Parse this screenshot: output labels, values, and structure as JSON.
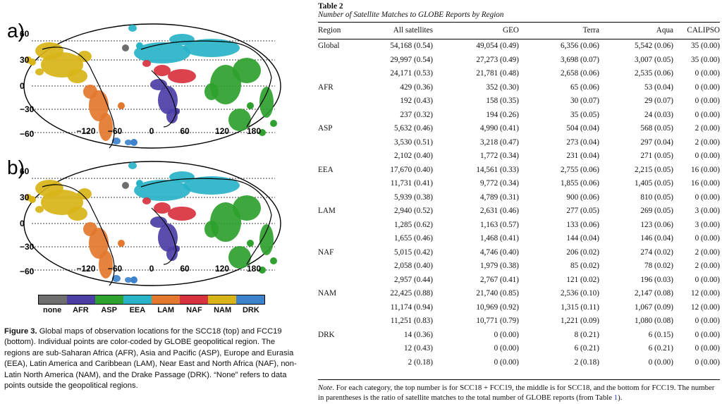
{
  "figure": {
    "panel_a": "a)",
    "panel_b": "b)",
    "lat_labels": [
      "60",
      "30",
      "0",
      "−30",
      "−60"
    ],
    "lon_labels": [
      "−120",
      "−60",
      "0",
      "60",
      "120",
      "180"
    ],
    "colorbar": [
      {
        "label": "none",
        "color": "#6e6e6e"
      },
      {
        "label": "AFR",
        "color": "#4b3fa6"
      },
      {
        "label": "ASP",
        "color": "#2ea12e"
      },
      {
        "label": "EEA",
        "color": "#29b3c9"
      },
      {
        "label": "LAM",
        "color": "#e3782e"
      },
      {
        "label": "NAF",
        "color": "#d8323f"
      },
      {
        "label": "NAM",
        "color": "#d8b418"
      },
      {
        "label": "DRK",
        "color": "#3d82cc"
      }
    ],
    "caption_label": "Figure 3.",
    "caption_text": " Global maps of observation locations for the SCC18 (top) and FCC19 (bottom). Individual points are color-coded by GLOBE geopolitical region. The regions are sub-Saharan Africa (AFR), Asia and Pacific (ASP), Europe and Eurasia (EEA), Latin America and Caribbean (LAM), Near East and North Africa (NAF), non-Latin North America (NAM), and the Drake Passage (DRK). “None” refers to data points outside the geopolitical regions."
  },
  "table": {
    "title": "Table 2",
    "subtitle": "Number of Satellite Matches to GLOBE Reports by Region",
    "headers": [
      "Region",
      "All satellites",
      "GEO",
      "Terra",
      "Aqua",
      "CALIPSO"
    ],
    "rows": [
      [
        "Global",
        "54,168 (0.54)",
        "49,054 (0.49)",
        "6,356 (0.06)",
        "5,542 (0.06)",
        "35 (0.00)"
      ],
      [
        "",
        "29,997 (0.54)",
        "27,273 (0.49)",
        "3,698 (0.07)",
        "3,007 (0.05)",
        "35 (0.00)"
      ],
      [
        "",
        "24,171 (0.53)",
        "21,781 (0.48)",
        "2,658 (0.06)",
        "2,535 (0.06)",
        "0 (0.00)"
      ],
      [
        "AFR",
        "429 (0.36)",
        "352 (0.30)",
        "65 (0.06)",
        "53 (0.04)",
        "0 (0.00)"
      ],
      [
        "",
        "192 (0.43)",
        "158 (0.35)",
        "30 (0.07)",
        "29 (0.07)",
        "0 (0.00)"
      ],
      [
        "",
        "237 (0.32)",
        "194 (0.26)",
        "35 (0.05)",
        "24 (0.03)",
        "0 (0.00)"
      ],
      [
        "ASP",
        "5,632 (0.46)",
        "4,990 (0.41)",
        "504 (0.04)",
        "568 (0.05)",
        "2 (0.00)"
      ],
      [
        "",
        "3,530 (0.51)",
        "3,218 (0.47)",
        "273 (0.04)",
        "297 (0.04)",
        "2 (0.00)"
      ],
      [
        "",
        "2,102 (0.40)",
        "1,772 (0.34)",
        "231 (0.04)",
        "271 (0.05)",
        "0 (0.00)"
      ],
      [
        "EEA",
        "17,670 (0.40)",
        "14,561 (0.33)",
        "2,755 (0.06)",
        "2,215 (0.05)",
        "16 (0.00)"
      ],
      [
        "",
        "11,731 (0.41)",
        "9,772 (0.34)",
        "1,855 (0.06)",
        "1,405 (0.05)",
        "16 (0.00)"
      ],
      [
        "",
        "5,939 (0.38)",
        "4,789 (0.31)",
        "900 (0.06)",
        "810 (0.05)",
        "0 (0.00)"
      ],
      [
        "LAM",
        "2,940 (0.52)",
        "2,631 (0.46)",
        "277 (0.05)",
        "269 (0.05)",
        "3 (0.00)"
      ],
      [
        "",
        "1,285 (0.62)",
        "1,163 (0.57)",
        "133 (0.06)",
        "123 (0.06)",
        "3 (0.00)"
      ],
      [
        "",
        "1,655 (0.46)",
        "1,468 (0.41)",
        "144 (0.04)",
        "146 (0.04)",
        "0 (0.00)"
      ],
      [
        "NAF",
        "5,015 (0.42)",
        "4,746 (0.40)",
        "206 (0.02)",
        "274 (0.02)",
        "2 (0.00)"
      ],
      [
        "",
        "2,058 (0.40)",
        "1,979 (0.38)",
        "85 (0.02)",
        "78 (0.02)",
        "2 (0.00)"
      ],
      [
        "",
        "2,957 (0.44)",
        "2,767 (0.41)",
        "121 (0.02)",
        "196 (0.03)",
        "0 (0.00)"
      ],
      [
        "NAM",
        "22,425 (0.88)",
        "21,740 (0.85)",
        "2,536 (0.10)",
        "2,147 (0.08)",
        "12 (0.00)"
      ],
      [
        "",
        "11,174 (0.94)",
        "10,969 (0.92)",
        "1,315 (0.11)",
        "1,067 (0.09)",
        "12 (0.00)"
      ],
      [
        "",
        "11,251 (0.83)",
        "10,771 (0.79)",
        "1,221 (0.09)",
        "1,080 (0.08)",
        "0 (0.00)"
      ],
      [
        "DRK",
        "14 (0.36)",
        "0 (0.00)",
        "8 (0.21)",
        "6 (0.15)",
        "0 (0.00)"
      ],
      [
        "",
        "12 (0.43)",
        "0 (0.00)",
        "6 (0.21)",
        "6 (0.21)",
        "0 (0.00)"
      ],
      [
        "",
        "2 (0.18)",
        "0 (0.00)",
        "2 (0.18)",
        "0 (0.00)",
        "0 (0.00)"
      ]
    ],
    "note_label": "Note",
    "note_text": ". For each category, the top number is for SCC18 + FCC19, the middle is for SCC18, and the bottom for FCC19. The number in parentheses is the ratio of satellite matches to the total number of GLOBE reports (from Table ",
    "note_link": "1",
    "note_end": ")."
  }
}
